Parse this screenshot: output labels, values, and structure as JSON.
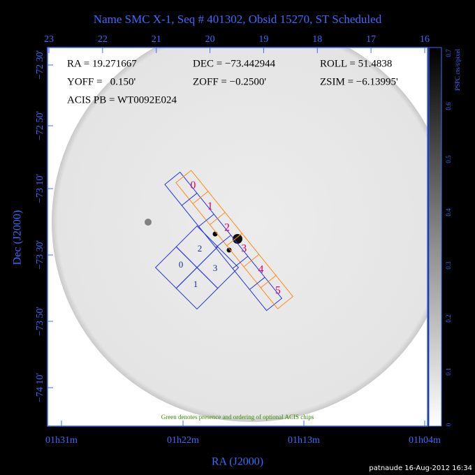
{
  "header": {
    "title": "Name SMC X-1, Seq # 401302, Obsid 15270, ST Scheduled"
  },
  "info": {
    "ra": "RA = 19.271667",
    "dec": "DEC = −73.442944",
    "roll": "ROLL = 51.4838",
    "yoff": "YOFF =   0.150'",
    "zoff": "ZOFF = −0.2500'",
    "zsim": "ZSIM = −6.13995'",
    "acis_pb": "ACIS PB = WT0092E024"
  },
  "top_axis": {
    "labels": [
      "23",
      "22",
      "21",
      "20",
      "19",
      "18",
      "17",
      "16"
    ]
  },
  "left_axis": {
    "title": "Dec (J2000)",
    "labels": [
      "−72 30'",
      "−72 50'",
      "−73 10'",
      "−73 30'",
      "−73 50'",
      "−74 10'"
    ]
  },
  "bottom_axis": {
    "title": "RA (J2000)",
    "labels": [
      "01h31m",
      "01h22m",
      "01h13m",
      "01h04m"
    ]
  },
  "colorbar": {
    "title": "PSPC cts/s/pixel",
    "labels": [
      "0",
      "0.1",
      "0.2",
      "0.3",
      "0.4",
      "0.5",
      "0.6",
      "0.7"
    ]
  },
  "acis_s": {
    "chips": [
      "0",
      "1",
      "2",
      "3",
      "4",
      "5"
    ]
  },
  "acis_i": {
    "chips": [
      "0",
      "1",
      "2",
      "3"
    ]
  },
  "note": "Green denotes presence and ordering of optional ACIS chips",
  "footer": "patnaude 16-Aug-2012 16:34"
}
